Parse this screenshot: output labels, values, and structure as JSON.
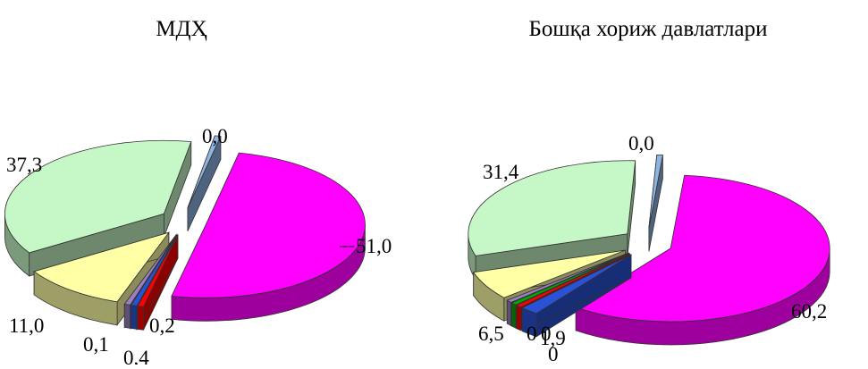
{
  "chart_data": [
    {
      "type": "pie",
      "title": "МДҲ",
      "slices": [
        {
          "value": 51.0,
          "label": "51,0",
          "color": "#ff00ff"
        },
        {
          "value": 0.2,
          "label": "0,2",
          "color": "#ff0000"
        },
        {
          "value": 0.4,
          "label": "0,4",
          "color": "#2a52d6"
        },
        {
          "value": 0.1,
          "label": "0,1",
          "color": "#9a7fc1"
        },
        {
          "value": 11.0,
          "label": "11,0",
          "color": "#ffffa6"
        },
        {
          "value": 37.3,
          "label": "37,3",
          "color": "#c6f7c6"
        },
        {
          "value": 0.0,
          "label": "0,0",
          "color": "#8eb4e3"
        }
      ]
    },
    {
      "type": "pie",
      "title": "Бошқа хориж давлатлари",
      "slices": [
        {
          "value": 60.2,
          "label": "60,2",
          "color": "#ff00ff"
        },
        {
          "value": 1.9,
          "label": "1,9",
          "color": "#2a52d6"
        },
        {
          "value": 0.0,
          "label": "0",
          "color": "#ff0000"
        },
        {
          "value": 0.0,
          "label": "0",
          "color": "#00aa00"
        },
        {
          "value": 0.0,
          "label": "0",
          "color": "#9a7fc1"
        },
        {
          "value": 6.5,
          "label": "6,5",
          "color": "#ffffa6"
        },
        {
          "value": 31.4,
          "label": "31,4",
          "color": "#c6f7c6"
        },
        {
          "value": 0.0,
          "label": "0,0",
          "color": "#8eb4e3"
        }
      ]
    }
  ]
}
